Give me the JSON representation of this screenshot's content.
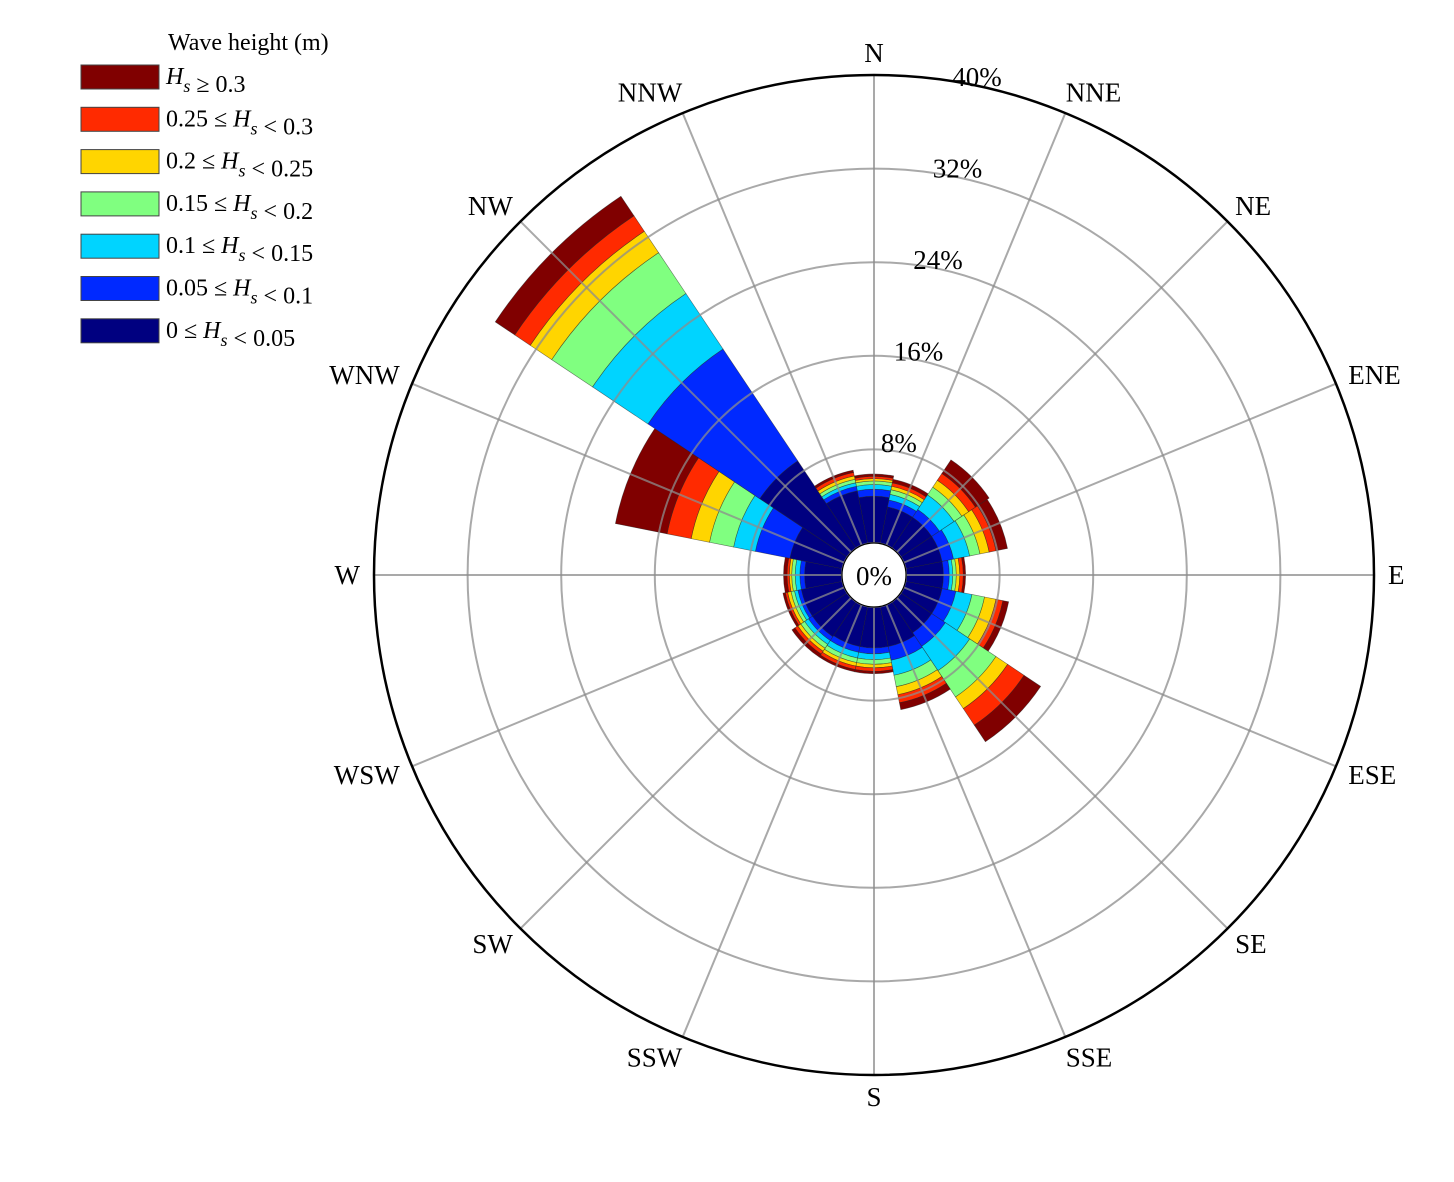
{
  "chart_data": {
    "type": "wind-rose",
    "legend": {
      "title": "Wave height (m)",
      "position": "top-left",
      "entries": [
        {
          "label_parts": [
            [
              "H",
              "i"
            ],
            [
              "s",
              "sub"
            ],
            [
              " ≥ 0.3",
              ""
            ]
          ],
          "color": "#800000"
        },
        {
          "label_parts": [
            [
              "0.25 ≤ ",
              ""
            ],
            [
              "H",
              "i"
            ],
            [
              "s",
              "sub"
            ],
            [
              " < 0.3",
              ""
            ]
          ],
          "color": "#ff2a00"
        },
        {
          "label_parts": [
            [
              "0.2 ≤ ",
              ""
            ],
            [
              "H",
              "i"
            ],
            [
              "s",
              "sub"
            ],
            [
              " < 0.25",
              ""
            ]
          ],
          "color": "#ffd500"
        },
        {
          "label_parts": [
            [
              "0.15 ≤ ",
              ""
            ],
            [
              "H",
              "i"
            ],
            [
              "s",
              "sub"
            ],
            [
              " < 0.2",
              ""
            ]
          ],
          "color": "#80ff80"
        },
        {
          "label_parts": [
            [
              "0.1 ≤ ",
              ""
            ],
            [
              "H",
              "i"
            ],
            [
              "s",
              "sub"
            ],
            [
              " < 0.15",
              ""
            ]
          ],
          "color": "#00d4ff"
        },
        {
          "label_parts": [
            [
              "0.05 ≤ ",
              ""
            ],
            [
              "H",
              "i"
            ],
            [
              "s",
              "sub"
            ],
            [
              " < 0.1",
              ""
            ]
          ],
          "color": "#0029ff"
        },
        {
          "label_parts": [
            [
              "0 ≤ ",
              ""
            ],
            [
              "H",
              "i"
            ],
            [
              "s",
              "sub"
            ],
            [
              " < 0.05",
              ""
            ]
          ],
          "color": "#000080"
        }
      ]
    },
    "directions": [
      "N",
      "NNE",
      "NE",
      "ENE",
      "E",
      "ESE",
      "SE",
      "SSE",
      "S",
      "SSW",
      "SW",
      "WSW",
      "W",
      "WNW",
      "NW",
      "NNW"
    ],
    "radial_ticks": [
      0,
      8,
      16,
      24,
      32,
      40
    ],
    "radial_tick_labels": [
      "0%",
      "8%",
      "16%",
      "24%",
      "32%",
      "40%"
    ],
    "r_max": 40,
    "grid": true,
    "bin_order": [
      "0-0.05",
      "0.05-0.1",
      "0.1-0.15",
      "0.15-0.2",
      "0.2-0.25",
      "0.25-0.3",
      ">=0.3"
    ],
    "series": [
      {
        "direction": "N",
        "cumulative": [
          4.0,
          4.6,
          5.0,
          5.3,
          5.5,
          5.7,
          5.9
        ]
      },
      {
        "direction": "NNE",
        "cumulative": [
          3.2,
          3.8,
          4.3,
          4.7,
          5.0,
          5.3,
          5.6
        ]
      },
      {
        "direction": "NE",
        "cumulative": [
          3.2,
          4.0,
          5.5,
          6.3,
          7.0,
          7.7,
          9.1
        ]
      },
      {
        "direction": "ENE",
        "cumulative": [
          3.2,
          4.2,
          5.6,
          6.5,
          7.3,
          7.9,
          8.9
        ]
      },
      {
        "direction": "E",
        "cumulative": [
          3.2,
          3.7,
          4.0,
          4.3,
          4.6,
          4.9,
          5.1
        ]
      },
      {
        "direction": "ESE",
        "cumulative": [
          3.2,
          4.4,
          5.8,
          6.9,
          7.9,
          8.5,
          9.0
        ]
      },
      {
        "direction": "SE",
        "cumulative": [
          3.2,
          4.6,
          7.1,
          9.8,
          11.0,
          12.7,
          14.4
        ]
      },
      {
        "direction": "SSE",
        "cumulative": [
          3.5,
          4.7,
          6.0,
          7.0,
          7.7,
          8.4,
          9.0
        ]
      },
      {
        "direction": "S",
        "cumulative": [
          3.5,
          4.0,
          4.5,
          4.9,
          5.2,
          5.5,
          5.7
        ]
      },
      {
        "direction": "SSW",
        "cumulative": [
          3.5,
          4.0,
          4.5,
          4.9,
          5.2,
          5.5,
          5.7
        ]
      },
      {
        "direction": "SW",
        "cumulative": [
          3.6,
          4.0,
          4.4,
          4.8,
          5.1,
          5.4,
          5.7
        ]
      },
      {
        "direction": "WSW",
        "cumulative": [
          3.6,
          3.9,
          4.2,
          4.5,
          4.8,
          5.0,
          5.2
        ]
      },
      {
        "direction": "W",
        "cumulative": [
          3.2,
          3.6,
          4.0,
          4.3,
          4.5,
          4.7,
          5.0
        ]
      },
      {
        "direction": "WNW",
        "cumulative": [
          4.6,
          7.6,
          9.5,
          11.6,
          13.2,
          15.3,
          19.8
        ]
      },
      {
        "direction": "NW",
        "cumulative": [
          9.0,
          20.5,
          26.2,
          30.4,
          32.6,
          34.2,
          36.2
        ]
      },
      {
        "direction": "NNW",
        "cumulative": [
          4.6,
          5.0,
          5.3,
          5.6,
          5.9,
          6.2,
          6.4
        ]
      }
    ]
  }
}
